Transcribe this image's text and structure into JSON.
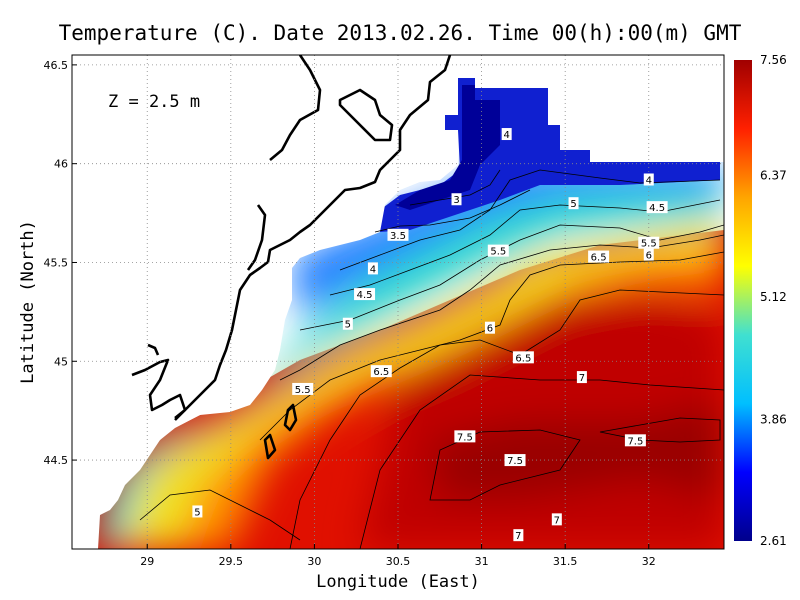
{
  "chart_data": {
    "type": "heatmap",
    "title": "Temperature (C). Date 2013.02.26. Time 00(h):00(m) GMT",
    "xlabel": "Longitude (East)",
    "ylabel": "Latitude (North)",
    "annotation": "Z = 2.5 m",
    "xlim": [
      28.55,
      32.45
    ],
    "ylim": [
      44.05,
      46.55
    ],
    "x_ticks": [
      29,
      29.5,
      30,
      30.5,
      31,
      31.5,
      32
    ],
    "x_tick_labels": [
      "29",
      "29.5",
      "30",
      "30.5",
      "31",
      "31.5",
      "32"
    ],
    "y_ticks": [
      44.5,
      45,
      45.5,
      46,
      46.5
    ],
    "y_tick_labels": [
      "44.5",
      "45",
      "45.5",
      "46",
      "46.5"
    ],
    "grid": true,
    "colorbar": {
      "min": 2.61,
      "max": 7.56,
      "tick_values": [
        7.56,
        6.37,
        5.12,
        3.86,
        2.61
      ],
      "tick_labels": [
        "7.56",
        "6.37",
        "5.12",
        "3.86",
        "2.61"
      ],
      "colormap": [
        "#00008b",
        "#0000ff",
        "#00bfff",
        "#40e0d0",
        "#ffff00",
        "#ffa500",
        "#ff2000",
        "#a00000"
      ]
    },
    "contour_labels": [
      {
        "label": "4",
        "lon": 31.15,
        "lat": 46.15
      },
      {
        "label": "4",
        "lon": 32.0,
        "lat": 45.92
      },
      {
        "label": "3",
        "lon": 30.85,
        "lat": 45.82
      },
      {
        "label": "5",
        "lon": 31.55,
        "lat": 45.8
      },
      {
        "label": "4.5",
        "lon": 32.05,
        "lat": 45.78
      },
      {
        "label": "3.5",
        "lon": 30.5,
        "lat": 45.64
      },
      {
        "label": "5.5",
        "lon": 31.1,
        "lat": 45.56
      },
      {
        "label": "5.5",
        "lon": 32.0,
        "lat": 45.6
      },
      {
        "label": "6.5",
        "lon": 31.7,
        "lat": 45.53
      },
      {
        "label": "6",
        "lon": 32.0,
        "lat": 45.54
      },
      {
        "label": "4",
        "lon": 30.35,
        "lat": 45.47
      },
      {
        "label": "4.5",
        "lon": 30.3,
        "lat": 45.34
      },
      {
        "label": "5",
        "lon": 30.2,
        "lat": 45.19
      },
      {
        "label": "6",
        "lon": 31.05,
        "lat": 45.17
      },
      {
        "label": "6.5",
        "lon": 31.25,
        "lat": 45.02
      },
      {
        "label": "6.5",
        "lon": 30.4,
        "lat": 44.95
      },
      {
        "label": "7",
        "lon": 31.6,
        "lat": 44.92
      },
      {
        "label": "5.5",
        "lon": 29.93,
        "lat": 44.86
      },
      {
        "label": "7.5",
        "lon": 30.9,
        "lat": 44.62
      },
      {
        "label": "7.5",
        "lon": 31.92,
        "lat": 44.6
      },
      {
        "label": "7.5",
        "lon": 31.2,
        "lat": 44.5
      },
      {
        "label": "5",
        "lon": 29.3,
        "lat": 44.24
      },
      {
        "label": "7",
        "lon": 31.45,
        "lat": 44.2
      },
      {
        "label": "7",
        "lon": 31.22,
        "lat": 44.12
      }
    ]
  }
}
